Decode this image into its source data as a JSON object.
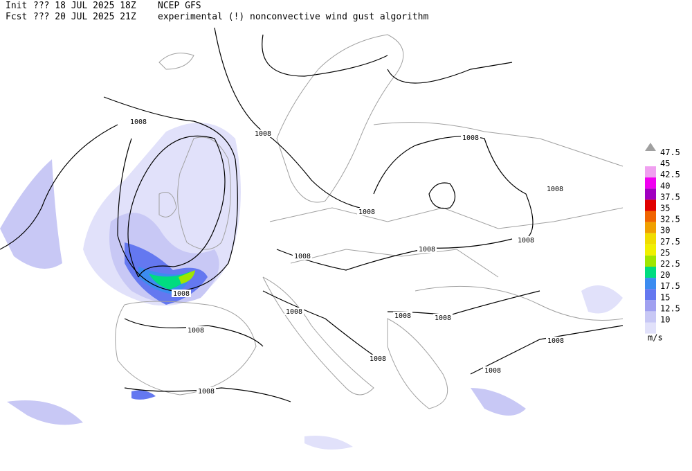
{
  "header": {
    "line1": [
      "Init",
      "??? 18 JUL 2025 18Z",
      "NCEP GFS"
    ],
    "line2": [
      "Fcst",
      "??? 20 JUL 2025 21Z",
      "experimental (!) nonconvective wind gust algorithm"
    ]
  },
  "contour_labels": [
    "1008",
    "1008",
    "1008",
    "1008",
    "1008",
    "1008",
    "1008",
    "1008",
    "1008",
    "1008",
    "1008",
    "1008",
    "1008",
    "1008",
    "1008",
    "1008",
    "1008"
  ],
  "legend": {
    "levels": [
      47.5,
      45,
      42.5,
      40,
      37.5,
      35,
      32.5,
      30,
      27.5,
      25,
      22.5,
      20,
      17.5,
      15,
      12.5,
      10
    ],
    "top_color": "#a0a0a0",
    "colors": [
      "#f0a0f0",
      "#f000f0",
      "#a000c0",
      "#e00000",
      "#f06400",
      "#f0a000",
      "#f0dc00",
      "#f0f000",
      "#a0e600",
      "#00dc80",
      "#3c8cf0",
      "#6478f0",
      "#a0a0f0",
      "#c8c8f5",
      "#e1e1fa"
    ],
    "units": "m/s"
  }
}
